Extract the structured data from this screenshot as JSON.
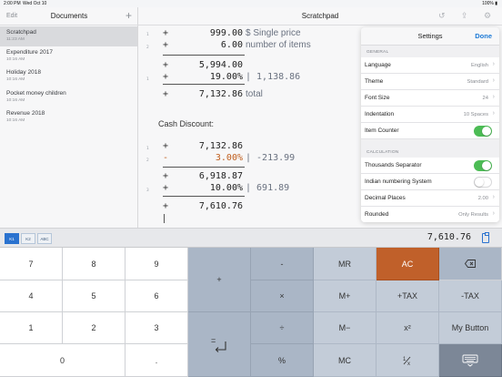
{
  "status_bar": {
    "time": "2:00 PM",
    "date": "Wed Oct 10",
    "battery": "100%"
  },
  "sidebar": {
    "edit_label": "Edit",
    "title": "Documents",
    "add_label": "+",
    "documents": [
      {
        "name": "Scratchpad",
        "timestamp": "11:23 AM",
        "selected": true
      },
      {
        "name": "Expenditure 2017",
        "timestamp": "10:16 AM"
      },
      {
        "name": "Holiday 2018",
        "timestamp": "10:16 AM"
      },
      {
        "name": "Pocket money children",
        "timestamp": "10:16 AM"
      },
      {
        "name": "Revenue 2018",
        "timestamp": "10:16 AM"
      }
    ]
  },
  "main": {
    "title": "Scratchpad",
    "lines": {
      "l1": {
        "no": "1",
        "op": "+",
        "value": "999.00",
        "note": "$ Single price"
      },
      "l2": {
        "no": "2",
        "op": "+",
        "value": "6.00",
        "note": "number of items"
      },
      "l3": {
        "no": "3",
        "op": "+",
        "value": "5,994.00",
        "note": "| 1,138.86"
      },
      "l4": {
        "op": "+",
        "value": "19.00%"
      },
      "l5": {
        "op": "+",
        "value": "7,132.86",
        "note": "total"
      },
      "section": "Cash Discount:",
      "l6": {
        "no": "1",
        "op": "+",
        "value": "7,132.86"
      },
      "l7": {
        "no": "2",
        "op": "-",
        "value": "3.00%",
        "note": "| -213.99"
      },
      "l8": {
        "op": "+",
        "value": "6,918.87"
      },
      "l9": {
        "no": "3",
        "op": "+",
        "value": "10.00%",
        "note": "| 691.89"
      },
      "l10": {
        "op": "+",
        "value": "7,610.76"
      }
    }
  },
  "settings": {
    "title": "Settings",
    "done_label": "Done",
    "general_label": "GENERAL",
    "language": {
      "label": "Language",
      "value": "English"
    },
    "theme": {
      "label": "Theme",
      "value": "Standard"
    },
    "font_size": {
      "label": "Font Size",
      "value": "24"
    },
    "indentation": {
      "label": "Indentation",
      "value": "10 Spaces"
    },
    "item_counter": {
      "label": "Item Counter",
      "on": true
    },
    "calculation_label": "CALCULATION",
    "thousands_separator": {
      "label": "Thousands Separator",
      "on": true
    },
    "indian_numbering": {
      "label": "Indian numbering System",
      "on": false
    },
    "decimal_places": {
      "label": "Decimal Places",
      "value": "2.00"
    },
    "rounded": {
      "label": "Rounded",
      "value": "Only Results"
    }
  },
  "display": {
    "memory_tabs": [
      "K1",
      "K2",
      "ABC"
    ],
    "value": "7,610.76"
  },
  "keypad": {
    "k7": "7",
    "k8": "8",
    "k9": "9",
    "k4": "4",
    "k5": "5",
    "k6": "6",
    "k1": "1",
    "k2": "2",
    "k3": "3",
    "k0": "0",
    "dot": ".",
    "plus": "+",
    "minus": "-",
    "times": "×",
    "divide": "÷",
    "percent": "%",
    "equals": "=",
    "mr": "MR",
    "mplus": "M+",
    "mminus": "M−",
    "mc": "MC",
    "ac": "AC",
    "plus_tax": "+TAX",
    "minus_tax": "-TAX",
    "square": "x²",
    "my_button": "My Button",
    "reciprocal": "1/x"
  },
  "colors": {
    "accent": "#2a72cf",
    "ac_key": "#c0602a",
    "toggle_on": "#4cbc55",
    "negative": "#c06020"
  }
}
